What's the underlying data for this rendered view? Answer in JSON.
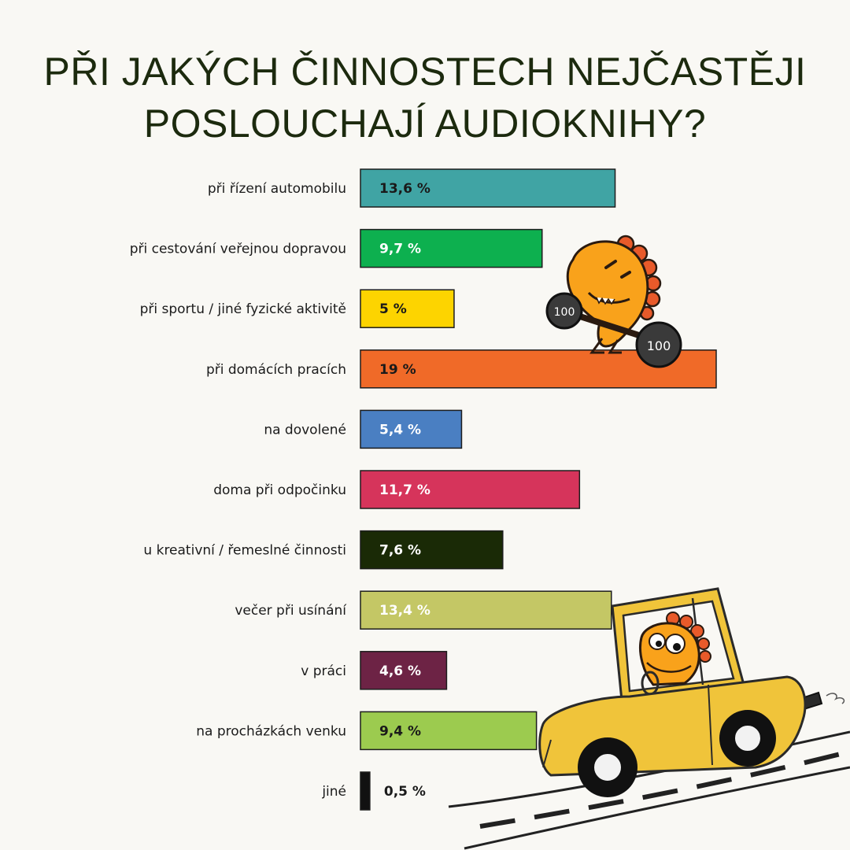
{
  "title_lines": [
    "PŘI JAKÝCH ČINNOSTECH NEJČASTĚJI",
    "POSLOUCHAJÍ AUDIOKNIHY?"
  ],
  "chart_data": {
    "type": "bar",
    "orientation": "horizontal",
    "categories": [
      "při řízení automobilu",
      "při cestování veřejnou dopravou",
      "při sportu / jiné fyzické aktivitě",
      "při domácích pracích",
      "na dovolené",
      "doma při odpočinku",
      "u kreativní / řemeslné činnosti",
      "večer při usínání",
      "v práci",
      "na procházkách venku",
      "jiné"
    ],
    "values": [
      13.6,
      9.7,
      5,
      19,
      5.4,
      11.7,
      7.6,
      13.4,
      4.6,
      9.4,
      0.5
    ],
    "value_labels": [
      "13,6 %",
      "9,7 %",
      "5 %",
      "19 %",
      "5,4 %",
      "11,7 %",
      "7,6 %",
      "13,4 %",
      "4,6 %",
      "9,4 %",
      "0,5 %"
    ],
    "colors": [
      "#40a4a4",
      "#0db04f",
      "#fdd400",
      "#f06a28",
      "#4a7fc2",
      "#d6345b",
      "#1a2a06",
      "#c4c765",
      "#6d2345",
      "#9ccb4f",
      "#111111"
    ],
    "label_colors": [
      "#1a1a1a",
      "#ffffff",
      "#1a1a1a",
      "#1a1a1a",
      "#ffffff",
      "#ffffff",
      "#ffffff",
      "#ffffff",
      "#ffffff",
      "#1a1a1a",
      "#1a1a1a"
    ],
    "xlim": [
      0,
      19
    ],
    "grid": false,
    "legend": "none"
  },
  "decor": {
    "weights_text": "100"
  }
}
